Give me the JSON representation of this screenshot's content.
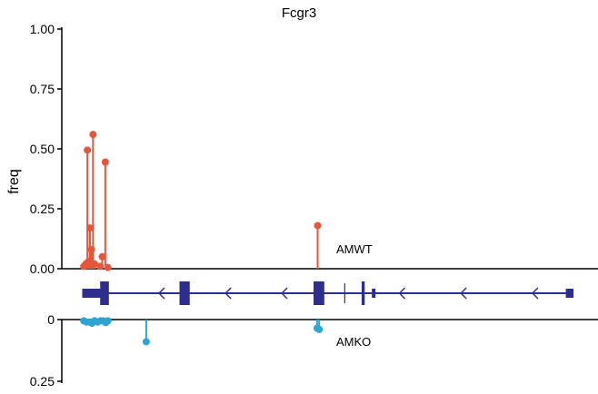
{
  "chart_data": {
    "type": "lollipop",
    "title": "Fcgr3",
    "ylabel": "freq",
    "x_range": [
      0,
      100
    ],
    "top_panel": {
      "label": "AMWT",
      "color": "#E4573C",
      "ylim": [
        0,
        1
      ],
      "ticks": [
        "1.00",
        "0.75",
        "0.50",
        "0.25",
        "0.00"
      ],
      "tick_values": [
        1.0,
        0.75,
        0.5,
        0.25,
        0.0
      ],
      "points": [
        {
          "x": 4.3,
          "y": 0.01
        },
        {
          "x": 4.7,
          "y": 0.02
        },
        {
          "x": 5.0,
          "y": 0.495
        },
        {
          "x": 5.2,
          "y": 0.03
        },
        {
          "x": 5.5,
          "y": 0.17
        },
        {
          "x": 5.8,
          "y": 0.08
        },
        {
          "x": 6.1,
          "y": 0.56
        },
        {
          "x": 6.4,
          "y": 0.02
        },
        {
          "x": 7.5,
          "y": 0.01
        },
        {
          "x": 7.9,
          "y": 0.05
        },
        {
          "x": 8.5,
          "y": 0.445
        },
        {
          "x": 9.0,
          "y": 0.005
        },
        {
          "x": 50.0,
          "y": 0.18
        }
      ]
    },
    "bottom_panel": {
      "label": "AMKO",
      "color": "#2EA4D3",
      "ylim": [
        0,
        0.25
      ],
      "ticks": [
        "0",
        "0.25"
      ],
      "tick_values": [
        0,
        0.25
      ],
      "points": [
        {
          "x": 4.3,
          "y": 0.005
        },
        {
          "x": 4.8,
          "y": 0.01
        },
        {
          "x": 5.4,
          "y": 0.01
        },
        {
          "x": 5.9,
          "y": 0.015
        },
        {
          "x": 6.4,
          "y": 0.005
        },
        {
          "x": 7.0,
          "y": 0.01
        },
        {
          "x": 7.6,
          "y": 0.005
        },
        {
          "x": 8.1,
          "y": 0.005
        },
        {
          "x": 8.6,
          "y": 0.012
        },
        {
          "x": 9.0,
          "y": 0.005
        },
        {
          "x": 16.5,
          "y": 0.09
        },
        {
          "x": 49.9,
          "y": 0.035
        },
        {
          "x": 50.3,
          "y": 0.04
        }
      ]
    },
    "gene_model": {
      "color": "#2E2E8F",
      "strand": "minus",
      "start": 4,
      "end": 100,
      "exons": [
        {
          "start": 4,
          "end": 8.5,
          "kind": "utr"
        },
        {
          "start": 7.5,
          "end": 9.2,
          "kind": "cds"
        },
        {
          "start": 23,
          "end": 25,
          "kind": "cds"
        },
        {
          "start": 49.2,
          "end": 51.3,
          "kind": "cds"
        },
        {
          "start": 58.6,
          "end": 59.2,
          "kind": "cds"
        },
        {
          "start": 60.6,
          "end": 61.3,
          "kind": "utr"
        },
        {
          "start": 98.5,
          "end": 100,
          "kind": "utr"
        }
      ],
      "arrows": [
        19,
        32,
        43,
        66,
        78,
        92
      ]
    }
  }
}
